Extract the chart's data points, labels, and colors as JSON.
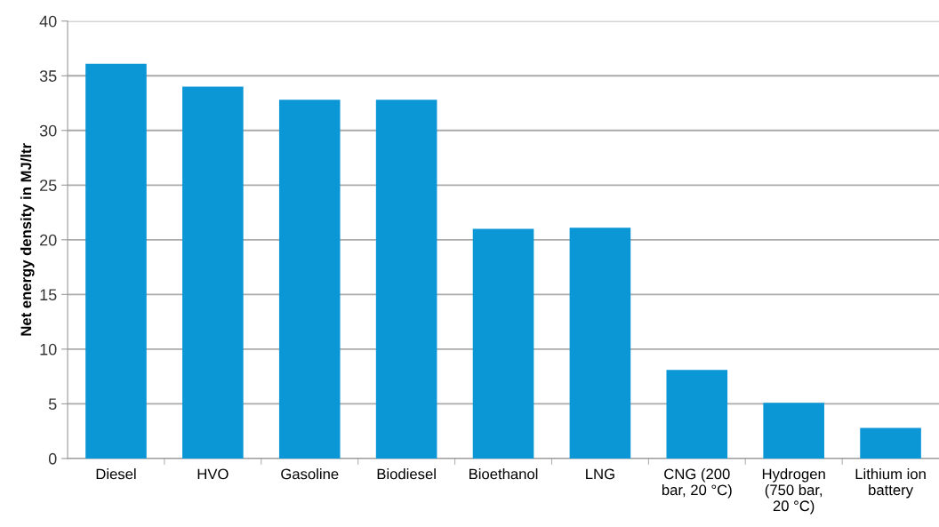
{
  "chart_data": {
    "type": "bar",
    "ylabel": "Net energy density in MJ/ltr",
    "categories": [
      "Diesel",
      "HVO",
      "Gasoline",
      "Biodiesel",
      "Bioethanol",
      "LNG",
      "CNG (200\nbar, 20 °C)",
      "Hydrogen\n(750 bar,\n20 °C)",
      "Lithium ion\nbattery"
    ],
    "values": [
      36.1,
      34.0,
      32.8,
      32.8,
      21.0,
      21.1,
      8.1,
      5.1,
      2.8
    ],
    "color": "#0b96d6",
    "ylim": [
      0,
      40
    ],
    "yticks": [
      0,
      5,
      10,
      15,
      20,
      25,
      30,
      35,
      40
    ],
    "grid": "y"
  }
}
